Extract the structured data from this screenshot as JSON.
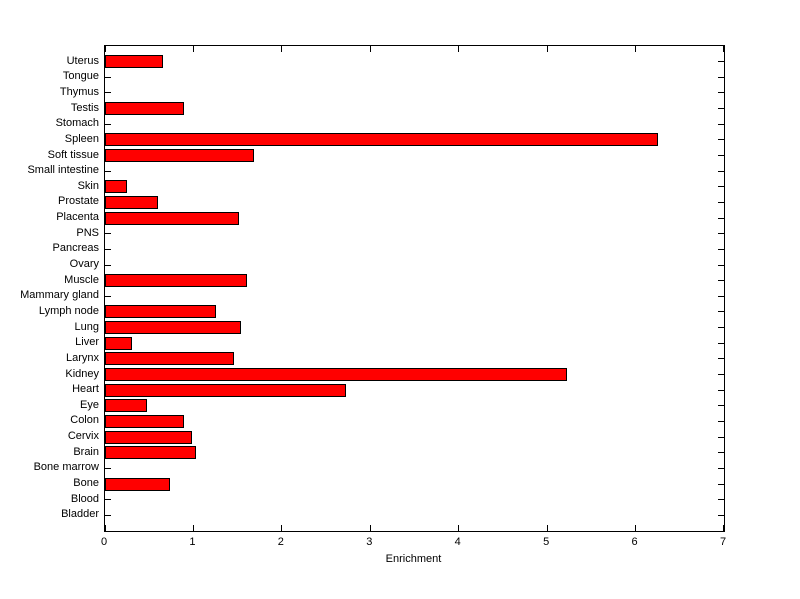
{
  "figure": {
    "background": "#ffffff",
    "axis_color": "#000000",
    "text_color": "#000000"
  },
  "chart_data": {
    "type": "bar",
    "orientation": "horizontal",
    "title": "",
    "xlabel": "Enrichment",
    "ylabel": "",
    "xlim": [
      0,
      7
    ],
    "xticks": [
      0,
      1,
      2,
      3,
      4,
      5,
      6,
      7
    ],
    "grid": false,
    "legend": null,
    "bar_color": "#ff0000",
    "bar_edge_color": "#000000",
    "category_order": "top-to-bottom",
    "categories": [
      "Uterus",
      "Tongue",
      "Thymus",
      "Testis",
      "Stomach",
      "Spleen",
      "Soft tissue",
      "Small intestine",
      "Skin",
      "Prostate",
      "Placenta",
      "PNS",
      "Pancreas",
      "Ovary",
      "Muscle",
      "Mammary gland",
      "Lymph node",
      "Lung",
      "Liver",
      "Larynx",
      "Kidney",
      "Heart",
      "Eye",
      "Colon",
      "Cervix",
      "Brain",
      "Bone marrow",
      "Bone",
      "Blood",
      "Bladder"
    ],
    "values": [
      0.66,
      0,
      0,
      0.89,
      0,
      6.25,
      1.69,
      0,
      0.25,
      0.6,
      1.52,
      0,
      0,
      0,
      1.61,
      0,
      1.25,
      1.54,
      0.31,
      1.46,
      5.22,
      2.73,
      0.48,
      0.89,
      0.98,
      1.03,
      0,
      0.74,
      0,
      0
    ]
  }
}
